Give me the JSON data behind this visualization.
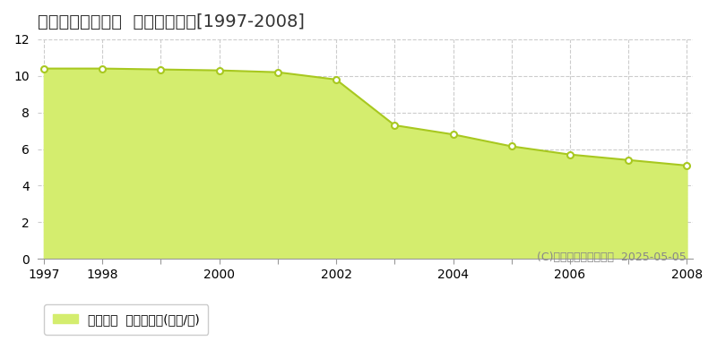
{
  "title": "仙台市青葉区郷六  基準地価推移[1997-2008]",
  "years": [
    1997,
    1998,
    1999,
    2000,
    2001,
    2002,
    2003,
    2004,
    2005,
    2006,
    2007,
    2008
  ],
  "values": [
    10.4,
    10.4,
    10.35,
    10.3,
    10.2,
    9.8,
    7.3,
    6.8,
    6.15,
    5.7,
    5.4,
    5.1
  ],
  "ylim": [
    0,
    12
  ],
  "yticks": [
    0,
    2,
    4,
    6,
    8,
    10,
    12
  ],
  "xlim": [
    1997,
    2008
  ],
  "xtick_positions": [
    1997,
    1998,
    1999,
    2000,
    2001,
    2002,
    2003,
    2004,
    2005,
    2006,
    2007,
    2008
  ],
  "xtick_labels": [
    "1997",
    "1998",
    "",
    "2000",
    "",
    "2002",
    "",
    "2004",
    "",
    "2006",
    "",
    "2008"
  ],
  "fill_color": "#d4ed6e",
  "line_color": "#a8c820",
  "marker_facecolor": "#ffffff",
  "marker_edgecolor": "#a8c820",
  "grid_color": "#cccccc",
  "background_color": "#ffffff",
  "legend_label": "基準地価  平均坪単価(万円/坪)",
  "copyright_text": "(C)土地価格ドットコム  2025-05-05",
  "title_fontsize": 14,
  "tick_fontsize": 10,
  "legend_fontsize": 10,
  "copyright_fontsize": 9
}
